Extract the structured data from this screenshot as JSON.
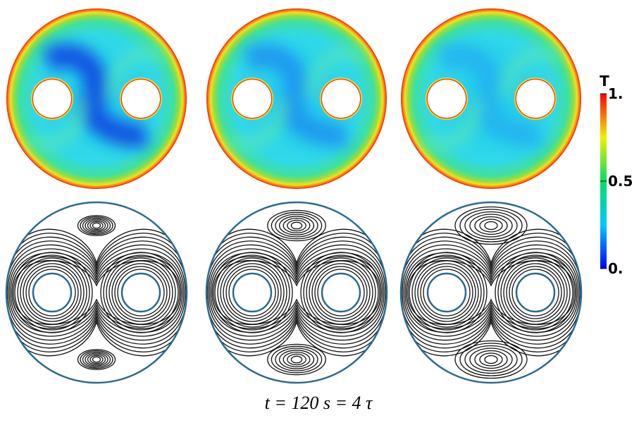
{
  "colorbar": {
    "title": "T",
    "ticks": [
      {
        "value": 1,
        "label": "1."
      },
      0.5,
      {
        "value": 0,
        "label": "0."
      }
    ],
    "range": [
      0,
      1
    ]
  },
  "caption": "t = 120 s = 4 τ"
}
